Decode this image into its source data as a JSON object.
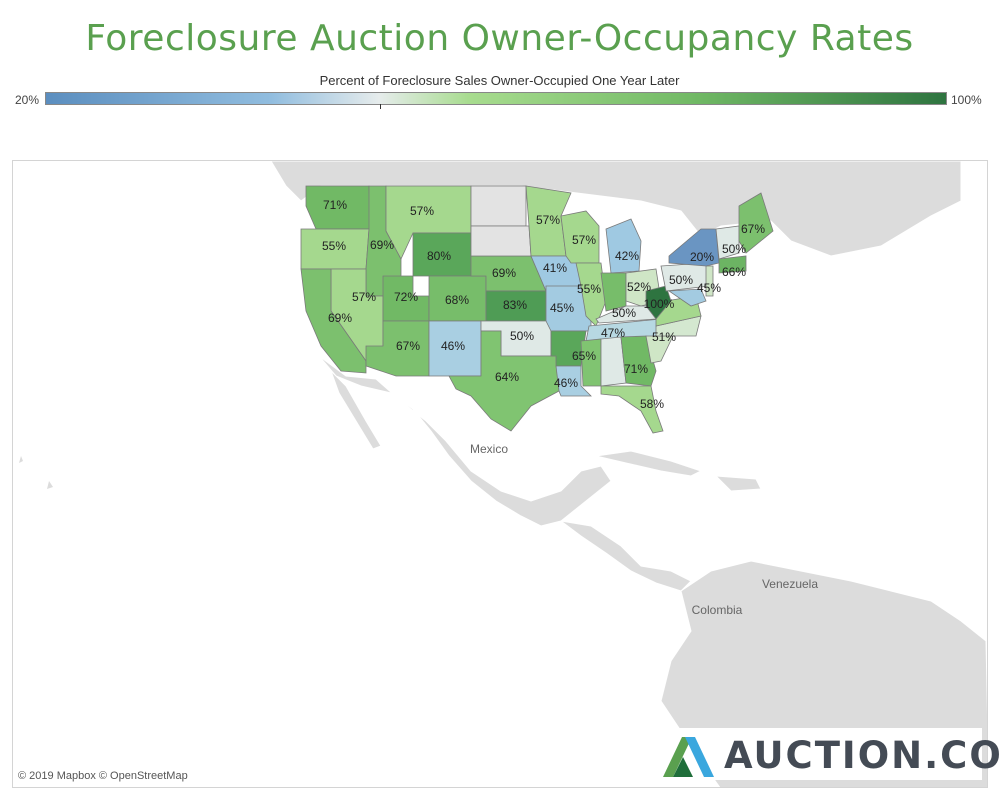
{
  "title": "Foreclosure Auction Owner-Occupancy Rates",
  "legend": {
    "title": "Percent of Foreclosure Sales Owner-Occupied One Year Later",
    "min_label": "20%",
    "max_label": "100%"
  },
  "colors": {
    "low": "#5b8ebf",
    "mid": "#e6ecec",
    "high": "#2e7440",
    "title": "#5aa04f",
    "land": "#dcdcdc",
    "no_data": "#e3e3e3"
  },
  "map_labels": {
    "mexico": "Mexico",
    "venezuela": "Venezuela",
    "colombia": "Colombia"
  },
  "states": [
    {
      "name": "Washington",
      "value": "71%"
    },
    {
      "name": "Oregon",
      "value": "55%"
    },
    {
      "name": "Idaho",
      "value": "69%"
    },
    {
      "name": "Montana",
      "value": "57%"
    },
    {
      "name": "Wyoming",
      "value": "80%"
    },
    {
      "name": "Nevada",
      "value": "57%"
    },
    {
      "name": "Utah",
      "value": "72%"
    },
    {
      "name": "Colorado",
      "value": "68%"
    },
    {
      "name": "California",
      "value": "69%"
    },
    {
      "name": "Arizona",
      "value": "67%"
    },
    {
      "name": "New Mexico",
      "value": "46%"
    },
    {
      "name": "Nebraska",
      "value": "69%"
    },
    {
      "name": "Kansas",
      "value": "83%"
    },
    {
      "name": "Oklahoma",
      "value": "50%"
    },
    {
      "name": "Texas",
      "value": "64%"
    },
    {
      "name": "Minnesota",
      "value": "57%"
    },
    {
      "name": "Iowa",
      "value": "41%"
    },
    {
      "name": "Missouri",
      "value": "45%"
    },
    {
      "name": "Arkansas",
      "value": ""
    },
    {
      "name": "Louisiana",
      "value": "46%"
    },
    {
      "name": "Wisconsin",
      "value": "57%"
    },
    {
      "name": "Illinois",
      "value": "55%"
    },
    {
      "name": "Michigan",
      "value": "42%"
    },
    {
      "name": "Indiana",
      "value": "52%"
    },
    {
      "name": "Ohio",
      "value": "50%"
    },
    {
      "name": "Kentucky",
      "value": "50%"
    },
    {
      "name": "Tennessee",
      "value": "47%"
    },
    {
      "name": "Mississippi",
      "value": "65%"
    },
    {
      "name": "Alabama",
      "value": ""
    },
    {
      "name": "Georgia",
      "value": "71%"
    },
    {
      "name": "Florida",
      "value": "58%"
    },
    {
      "name": "South Carolina",
      "value": ""
    },
    {
      "name": "North Carolina",
      "value": "51%"
    },
    {
      "name": "Virginia",
      "value": ""
    },
    {
      "name": "West Virginia",
      "value": "100%"
    },
    {
      "name": "Pennsylvania",
      "value": "50%"
    },
    {
      "name": "New York",
      "value": "20%"
    },
    {
      "name": "Maryland",
      "value": "45%"
    },
    {
      "name": "New Jersey",
      "value": "66%"
    },
    {
      "name": "Vermont",
      "value": "50%"
    },
    {
      "name": "Maine",
      "value": "67%"
    }
  ],
  "attribution": "© 2019 Mapbox © OpenStreetMap",
  "logo": {
    "text": "AUCTION.COM",
    "icon": "auction-logo-icon"
  }
}
